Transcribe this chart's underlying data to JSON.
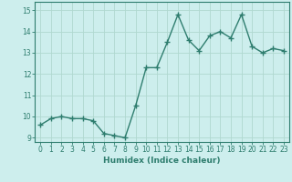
{
  "xlabel": "Humidex (Indice chaleur)",
  "x": [
    0,
    1,
    2,
    3,
    4,
    5,
    6,
    7,
    8,
    9,
    10,
    11,
    12,
    13,
    14,
    15,
    16,
    17,
    18,
    19,
    20,
    21,
    22,
    23
  ],
  "y": [
    9.6,
    9.9,
    10.0,
    9.9,
    9.9,
    9.8,
    9.2,
    9.1,
    9.0,
    10.5,
    12.3,
    12.3,
    13.5,
    14.8,
    13.6,
    13.1,
    13.8,
    14.0,
    13.7,
    14.8,
    13.3,
    13.0,
    13.2,
    13.1
  ],
  "line_color": "#2e7d6e",
  "marker": "+",
  "marker_size": 4,
  "bg_color": "#cdeeed",
  "grid_color": "#b0d8d0",
  "ylim": [
    8.8,
    15.4
  ],
  "yticks": [
    9,
    10,
    11,
    12,
    13,
    14,
    15
  ],
  "xlim": [
    -0.5,
    23.5
  ],
  "xticks": [
    0,
    1,
    2,
    3,
    4,
    5,
    6,
    7,
    8,
    9,
    10,
    11,
    12,
    13,
    14,
    15,
    16,
    17,
    18,
    19,
    20,
    21,
    22,
    23
  ],
  "tick_color": "#2e7d6e",
  "label_color": "#2e7d6e",
  "xlabel_fontsize": 6.5,
  "tick_fontsize": 5.5,
  "linewidth": 1.0,
  "spine_color": "#2e7d6e"
}
